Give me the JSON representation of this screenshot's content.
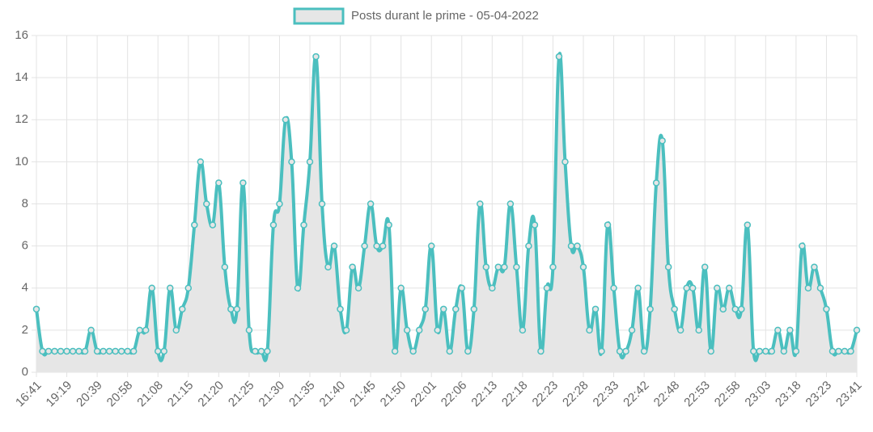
{
  "chart_data": {
    "type": "line",
    "categories": [
      "16:41",
      null,
      null,
      null,
      null,
      "19:19",
      null,
      null,
      null,
      null,
      "20:39",
      null,
      null,
      null,
      null,
      "20:58",
      null,
      null,
      null,
      null,
      "21:08",
      null,
      null,
      null,
      null,
      "21:15",
      null,
      null,
      null,
      null,
      "21:20",
      null,
      null,
      null,
      null,
      "21:25",
      null,
      null,
      null,
      null,
      "21:30",
      null,
      null,
      null,
      null,
      "21:35",
      null,
      null,
      null,
      null,
      "21:40",
      null,
      null,
      null,
      null,
      "21:45",
      null,
      null,
      null,
      null,
      "21:50",
      null,
      null,
      null,
      null,
      "22:01",
      null,
      null,
      null,
      null,
      "22:06",
      null,
      null,
      null,
      null,
      "22:13",
      null,
      null,
      null,
      null,
      "22:18",
      null,
      null,
      null,
      null,
      "22:23",
      null,
      null,
      null,
      null,
      "22:28",
      null,
      null,
      null,
      null,
      "22:33",
      null,
      null,
      null,
      null,
      "22:42",
      null,
      null,
      null,
      null,
      "22:48",
      null,
      null,
      null,
      null,
      "22:53",
      null,
      null,
      null,
      null,
      "22:58",
      null,
      null,
      null,
      null,
      "23:03",
      null,
      null,
      null,
      null,
      "23:18",
      null,
      null,
      null,
      null,
      "23:23",
      null,
      null,
      null,
      null,
      "23:41"
    ],
    "series": [
      {
        "name": "Posts durant le prime - 05-04-2022",
        "color": "#4bbfbf",
        "fill": "#e6e6e6",
        "values": [
          3,
          1,
          1,
          1,
          1,
          1,
          1,
          1,
          1,
          2,
          1,
          1,
          1,
          1,
          1,
          1,
          1,
          2,
          2,
          4,
          1,
          1,
          4,
          2,
          3,
          4,
          7,
          10,
          8,
          7,
          9,
          5,
          3,
          3,
          9,
          2,
          1,
          1,
          1,
          7,
          8,
          12,
          10,
          4,
          7,
          10,
          15,
          8,
          5,
          6,
          3,
          2,
          5,
          4,
          6,
          8,
          6,
          6,
          7,
          1,
          4,
          2,
          1,
          2,
          3,
          6,
          2,
          3,
          1,
          3,
          4,
          1,
          3,
          8,
          5,
          4,
          5,
          5,
          8,
          5,
          2,
          6,
          7,
          1,
          4,
          5,
          15,
          10,
          6,
          6,
          5,
          2,
          3,
          1,
          7,
          4,
          1,
          1,
          2,
          4,
          1,
          3,
          9,
          11,
          5,
          3,
          2,
          4,
          4,
          2,
          5,
          1,
          4,
          3,
          4,
          3,
          3,
          7,
          1,
          1,
          1,
          1,
          2,
          1,
          2,
          1,
          6,
          4,
          5,
          4,
          3,
          1,
          1,
          1,
          1,
          2
        ]
      }
    ],
    "ylim": [
      0,
      16
    ],
    "yticks": [
      0,
      2,
      4,
      6,
      8,
      10,
      12,
      14,
      16
    ],
    "grid": true,
    "legend_position": "top"
  }
}
